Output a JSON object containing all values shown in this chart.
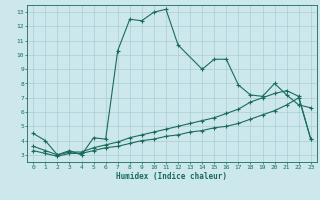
{
  "xlabel": "Humidex (Indice chaleur)",
  "bg_color": "#cce8ec",
  "grid_color": "#aacdd4",
  "line_color": "#1a6b5a",
  "xlim": [
    -0.5,
    23.5
  ],
  "ylim": [
    2.5,
    13.5
  ],
  "xticks": [
    0,
    1,
    2,
    3,
    4,
    5,
    6,
    7,
    8,
    9,
    10,
    11,
    12,
    13,
    14,
    15,
    16,
    17,
    18,
    19,
    20,
    21,
    22,
    23
  ],
  "yticks": [
    3,
    4,
    5,
    6,
    7,
    8,
    9,
    10,
    11,
    12,
    13
  ],
  "line1_x": [
    0,
    1,
    2,
    3,
    4,
    5,
    6,
    7,
    8,
    9,
    10,
    11,
    12,
    14,
    15,
    16,
    17,
    18,
    19,
    20,
    21,
    22,
    23
  ],
  "line1_y": [
    4.5,
    4.0,
    3.0,
    3.3,
    3.0,
    4.2,
    4.1,
    10.3,
    12.5,
    12.4,
    13.0,
    13.2,
    10.7,
    9.0,
    9.7,
    9.7,
    7.9,
    7.2,
    7.1,
    8.0,
    7.2,
    6.5,
    6.3
  ],
  "line2_x": [
    0,
    1,
    2,
    3,
    4,
    5,
    6,
    7,
    8,
    9,
    10,
    11,
    12,
    13,
    14,
    15,
    16,
    17,
    18,
    19,
    20,
    21,
    22,
    23
  ],
  "line2_y": [
    3.3,
    3.1,
    2.9,
    3.1,
    3.1,
    3.3,
    3.5,
    3.6,
    3.8,
    4.0,
    4.1,
    4.3,
    4.4,
    4.6,
    4.7,
    4.9,
    5.0,
    5.2,
    5.5,
    5.8,
    6.1,
    6.5,
    7.0,
    4.1
  ],
  "line3_x": [
    0,
    1,
    2,
    3,
    4,
    5,
    6,
    7,
    8,
    9,
    10,
    11,
    12,
    13,
    14,
    15,
    16,
    17,
    18,
    19,
    20,
    21,
    22,
    23
  ],
  "line3_y": [
    3.6,
    3.3,
    3.0,
    3.2,
    3.2,
    3.5,
    3.7,
    3.9,
    4.2,
    4.4,
    4.6,
    4.8,
    5.0,
    5.2,
    5.4,
    5.6,
    5.9,
    6.2,
    6.7,
    7.0,
    7.3,
    7.5,
    7.1,
    4.1
  ]
}
